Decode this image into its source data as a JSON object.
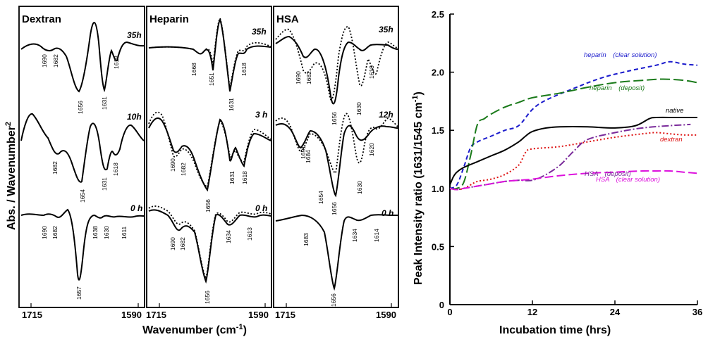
{
  "chart_data": [
    {
      "type": "line",
      "panels": [
        {
          "title": "Dextran",
          "spectra": [
            {
              "time": "35h",
              "peaks": [
                "1690",
                "1682",
                "1656",
                "1631",
                "1618"
              ]
            },
            {
              "time": "10h",
              "peaks": [
                "1682",
                "1654",
                "1631",
                "1618"
              ]
            },
            {
              "time": "0 h",
              "peaks": [
                "1690",
                "1682",
                "1657",
                "1638",
                "1630",
                "1611"
              ]
            }
          ]
        },
        {
          "title": "Heparin",
          "spectra": [
            {
              "time": "35h",
              "peaks": [
                "1668",
                "1651",
                "1631",
                "1618"
              ]
            },
            {
              "time": "3 h",
              "peaks": [
                "1690",
                "1682",
                "1656",
                "1631",
                "1618"
              ]
            },
            {
              "time": "0 h",
              "peaks": [
                "1690",
                "1682",
                "1656",
                "1634",
                "1613"
              ]
            }
          ]
        },
        {
          "title": "HSA",
          "spectra": [
            {
              "time": "35h",
              "peaks": [
                "1690",
                "1682",
                "1656",
                "1630",
                "1618"
              ]
            },
            {
              "time": "12h",
              "peaks": [
                "1691",
                "1684",
                "1654",
                "1656",
                "1630",
                "1620"
              ]
            },
            {
              "time": "0 h",
              "peaks": [
                "1683",
                "1656",
                "1634",
                "1614"
              ]
            }
          ]
        }
      ],
      "x_ticks": [
        "1715",
        "1590"
      ],
      "xlabel_main": "Wavenumber (cm",
      "xlabel_sup": "-1",
      "xlabel_end": ")",
      "ylabel_main": "Abs. / Wavenumber",
      "ylabel_sup": "2"
    },
    {
      "type": "line",
      "x_ticks": [
        0,
        12,
        24,
        36
      ],
      "y_ticks": [
        "0",
        "0.5",
        "1.0",
        "1.5",
        "2.0",
        "2.5"
      ],
      "xlim": [
        0,
        36
      ],
      "ylim": [
        0,
        2.5
      ],
      "xlabel": "Incubation time (hrs)",
      "ylabel_main": "Peak Intensity ratio (1631/1545 cm",
      "ylabel_sup": "-1",
      "ylabel_end": ")",
      "series": [
        {
          "name": "heparin (clear solution)",
          "color": "#1a1acc",
          "dash": "6,4",
          "x": [
            0,
            1,
            2,
            3,
            4,
            6,
            8,
            10,
            12,
            14,
            18,
            22,
            26,
            30,
            32,
            34,
            36
          ],
          "y": [
            1.0,
            1.03,
            1.18,
            1.35,
            1.4,
            1.45,
            1.5,
            1.54,
            1.68,
            1.76,
            1.86,
            1.95,
            2.01,
            2.06,
            2.09,
            2.07,
            2.06
          ]
        },
        {
          "name": "heparin (deposit)",
          "color": "#1a7a1a",
          "dash": "14,5",
          "x": [
            0,
            1,
            2,
            3,
            4,
            5,
            6,
            8,
            10,
            12,
            16,
            20,
            24,
            28,
            31,
            34,
            36
          ],
          "y": [
            1.0,
            1.0,
            1.05,
            1.28,
            1.55,
            1.6,
            1.64,
            1.7,
            1.74,
            1.78,
            1.82,
            1.87,
            1.91,
            1.93,
            1.94,
            1.93,
            1.91
          ]
        },
        {
          "name": "native",
          "color": "#000000",
          "dash": "",
          "x": [
            0,
            0.5,
            1,
            2,
            4,
            6,
            8,
            10,
            11,
            12,
            14,
            16,
            20,
            24,
            27,
            29,
            30,
            33,
            36
          ],
          "y": [
            1.03,
            1.1,
            1.14,
            1.18,
            1.23,
            1.28,
            1.33,
            1.4,
            1.45,
            1.49,
            1.52,
            1.53,
            1.53,
            1.52,
            1.54,
            1.6,
            1.61,
            1.61,
            1.61
          ]
        },
        {
          "name": "dextran",
          "color": "#dd1111",
          "dash": "2,3",
          "x": [
            0,
            1,
            2,
            3,
            4,
            6,
            8,
            10,
            11,
            12,
            16,
            20,
            24,
            28,
            30,
            32,
            34,
            36
          ],
          "y": [
            1.0,
            0.99,
            1.0,
            1.03,
            1.06,
            1.08,
            1.12,
            1.2,
            1.31,
            1.34,
            1.36,
            1.4,
            1.44,
            1.47,
            1.48,
            1.47,
            1.46,
            1.46
          ]
        },
        {
          "name": "HSA (deposit)",
          "color": "#7a2a9a",
          "dash": "10,3,2,3",
          "x": [
            0,
            1,
            2,
            4,
            6,
            8,
            10,
            12,
            14,
            16,
            18,
            20,
            24,
            28,
            32,
            35
          ],
          "y": [
            1.0,
            0.99,
            1.0,
            1.02,
            1.04,
            1.06,
            1.07,
            1.07,
            1.12,
            1.2,
            1.32,
            1.42,
            1.48,
            1.52,
            1.54,
            1.55
          ]
        },
        {
          "name": "HSA (clear solution)",
          "color": "#dd11dd",
          "dash": "12,5",
          "x": [
            0,
            1,
            2,
            4,
            6,
            8,
            10,
            12,
            16,
            20,
            24,
            28,
            30,
            32,
            34,
            36
          ],
          "y": [
            1.0,
            0.99,
            1.0,
            1.02,
            1.04,
            1.06,
            1.07,
            1.08,
            1.11,
            1.13,
            1.14,
            1.15,
            1.15,
            1.15,
            1.14,
            1.13
          ]
        }
      ],
      "annotations": [
        {
          "text": "heparin　(clear solution)",
          "color": "#1a1acc"
        },
        {
          "text": "heparin　(deposit)",
          "color": "#1a7a1a"
        },
        {
          "text": "native",
          "color": "#000000"
        },
        {
          "text": "dextran",
          "color": "#dd1111"
        },
        {
          "text": "HSA　(deposit)",
          "color": "#7a2a9a"
        },
        {
          "text": "HSA　(clear solution)",
          "color": "#dd11dd"
        }
      ]
    }
  ]
}
